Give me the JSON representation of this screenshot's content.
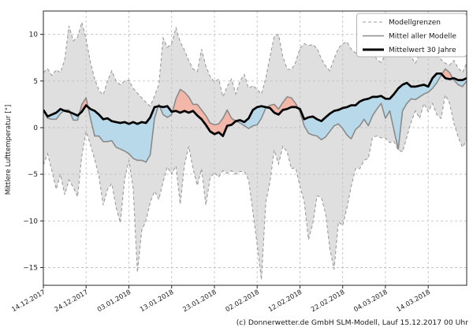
{
  "footer": {
    "credit": "(c) Donnerwetter.de GmbH SLM-Modell, Lauf 15.12.2017 00 Uhr"
  },
  "chart_data": {
    "type": "line",
    "title": "",
    "xlabel": "",
    "ylabel": "Mittlere Lufttemperatur [°]",
    "ylim": [
      -16.9,
      12.5
    ],
    "yticks": [
      10,
      5,
      0,
      -5,
      -10,
      -15
    ],
    "ytick_labels": [
      "10",
      "5",
      "0",
      "−5",
      "−10",
      "−15"
    ],
    "x_tick_days": [
      0,
      10,
      20,
      30,
      40,
      50,
      60,
      70,
      80,
      90
    ],
    "x_tick_labels": [
      "14.12.2017",
      "24.12.2017",
      "03.01.2018",
      "13.01.2018",
      "23.01.2018",
      "02.02.2018",
      "12.02.2018",
      "22.02.2018",
      "04.03.2018",
      "14.03.2018"
    ],
    "x_total_days": 99,
    "grid": true,
    "legend_position": "upper right",
    "legend": [
      {
        "label": "Modellgrenzen",
        "style": "dashed-gray"
      },
      {
        "label": "Mittel aller Modelle",
        "style": "solid-gray"
      },
      {
        "label": "Mittelwert 30 Jahre",
        "style": "solid-black-thick"
      }
    ],
    "colors": {
      "band_fill": "#c0c0c0",
      "band_edge": "#9b9b9b",
      "model_mean_line": "#8a8a8a",
      "mean30_line": "#000000",
      "warm_fill": "#f3b7aa",
      "cold_fill": "#b7d9ea",
      "grid": "#c4c4c4",
      "axis": "#262626"
    },
    "series": [
      {
        "name": "Modellgrenzen (oberes Band)",
        "values": [
          5.9,
          6.3,
          5.6,
          6.2,
          5.9,
          7.3,
          10.9,
          9.3,
          9.7,
          11.3,
          9.5,
          7.0,
          5.2,
          4.0,
          3.5,
          5.0,
          6.1,
          5.0,
          4.6,
          5.0,
          5.1,
          4.2,
          3.7,
          3.2,
          2.7,
          2.3,
          3.4,
          4.6,
          9.6,
          8.6,
          9.0,
          10.7,
          9.2,
          8.3,
          7.2,
          6.3,
          6.0,
          8.4,
          6.6,
          5.5,
          4.9,
          5.2,
          3.3,
          4.4,
          5.2,
          3.6,
          5.0,
          5.7,
          4.2,
          4.5,
          4.1,
          3.6,
          5.3,
          7.6,
          9.8,
          10.0,
          7.6,
          6.3,
          6.2,
          7.0,
          8.5,
          9.0,
          8.8,
          8.9,
          8.5,
          7.4,
          6.6,
          6.1,
          7.4,
          8.5,
          9.0,
          9.2,
          8.4,
          8.0,
          8.4,
          8.8,
          9.0,
          8.2,
          7.3,
          7.0,
          7.8,
          8.9,
          8.9,
          9.0,
          9.2,
          8.4,
          7.6,
          6.9,
          7.9,
          8.3,
          7.7,
          8.8,
          7.9,
          7.3,
          6.9,
          6.7,
          7.2,
          6.4,
          5.9,
          6.9
        ]
      },
      {
        "name": "Modellgrenzen (unteres Band)",
        "values": [
          -4.0,
          -2.8,
          -4.6,
          -6.6,
          -5.0,
          -7.2,
          -5.6,
          -6.4,
          -7.4,
          -3.0,
          -0.4,
          -1.8,
          -3.4,
          -5.2,
          -8.3,
          -6.6,
          -6.0,
          -8.5,
          -10.2,
          -5.5,
          -3.5,
          -6.5,
          -15.5,
          -11.0,
          -10.0,
          -8.0,
          -6.8,
          -7.7,
          -5.8,
          -4.2,
          -5.0,
          -4.1,
          -8.2,
          -4.0,
          -2.0,
          -4.4,
          -6.2,
          -4.4,
          -8.3,
          -5.4,
          -4.8,
          -5.3,
          -4.6,
          -4.9,
          -4.6,
          -5.0,
          -4.7,
          -4.7,
          -5.6,
          -9.0,
          -12.5,
          -16.3,
          -8.0,
          -5.8,
          -2.4,
          -3.9,
          -2.0,
          -2.6,
          -4.4,
          -4.3,
          -6.3,
          -7.9,
          -12.0,
          -10.3,
          -7.3,
          -7.5,
          -9.2,
          -13.0,
          -15.2,
          -10.1,
          -10.5,
          -8.6,
          -6.3,
          -4.4,
          -4.4,
          -3.5,
          -3.3,
          -1.0,
          -0.9,
          -1.1,
          -1.1,
          -1.6,
          -1.5,
          -2.4,
          -2.6,
          -1.0,
          0.6,
          1.8,
          1.0,
          2.6,
          1.7,
          2.6,
          1.4,
          1.0,
          3.5,
          2.6,
          0.5,
          -1.0,
          -2.1,
          -1.4
        ]
      },
      {
        "name": "Mittel aller Modelle",
        "values": [
          1.9,
          1.0,
          0.9,
          0.9,
          1.5,
          1.9,
          1.9,
          0.8,
          0.8,
          2.5,
          3.2,
          1.0,
          -0.9,
          -0.9,
          -1.5,
          -1.5,
          -1.4,
          -2.1,
          -2.3,
          -2.5,
          -2.8,
          -3.3,
          -3.5,
          -3.5,
          -3.7,
          -2.9,
          1.0,
          2.5,
          1.4,
          1.1,
          1.4,
          3.1,
          4.1,
          3.8,
          3.3,
          2.5,
          2.5,
          1.9,
          1.3,
          0.5,
          0.3,
          0.4,
          1.0,
          1.9,
          1.0,
          0.7,
          0.5,
          0.2,
          -0.1,
          0.2,
          0.3,
          1.0,
          2.1,
          2.4,
          2.5,
          2.0,
          2.7,
          3.3,
          3.2,
          2.6,
          1.7,
          0.2,
          -0.6,
          -0.8,
          -0.9,
          -1.3,
          -1.0,
          -0.4,
          0.2,
          0.4,
          -0.1,
          -0.8,
          -1.2,
          -0.2,
          0.2,
          0.9,
          0.2,
          1.3,
          2.0,
          2.6,
          1.0,
          1.8,
          -0.3,
          -2.3,
          1.8,
          2.6,
          3.1,
          3.0,
          3.3,
          3.6,
          3.8,
          4.2,
          4.8,
          5.6,
          6.3,
          5.9,
          5.1,
          4.6,
          4.4,
          5.0
        ]
      },
      {
        "name": "Mittelwert 30 Jahre",
        "values": [
          1.9,
          1.2,
          1.4,
          1.6,
          2.0,
          1.8,
          1.7,
          1.5,
          1.3,
          1.7,
          2.4,
          2.0,
          1.8,
          1.4,
          0.9,
          1.0,
          0.7,
          0.6,
          0.5,
          0.6,
          0.4,
          0.6,
          0.4,
          0.6,
          0.5,
          1.1,
          2.2,
          2.3,
          2.2,
          2.3,
          1.7,
          1.8,
          1.6,
          1.8,
          1.6,
          1.8,
          1.3,
          0.9,
          0.3,
          -0.4,
          -0.7,
          -0.5,
          -0.9,
          0.2,
          0.3,
          0.7,
          0.8,
          0.6,
          1.0,
          1.9,
          2.2,
          2.3,
          2.2,
          2.1,
          1.6,
          1.4,
          1.9,
          2.0,
          2.2,
          2.2,
          2.0,
          0.9,
          1.1,
          1.2,
          0.9,
          0.7,
          1.1,
          1.5,
          1.8,
          1.9,
          2.1,
          2.2,
          2.4,
          2.4,
          2.8,
          3.0,
          3.1,
          3.3,
          3.3,
          3.4,
          3.1,
          3.1,
          3.6,
          4.2,
          4.6,
          4.8,
          4.4,
          4.4,
          4.5,
          4.6,
          4.4,
          5.3,
          5.8,
          5.8,
          5.3,
          5.2,
          5.3,
          5.1,
          5.1,
          5.3
        ]
      }
    ]
  }
}
